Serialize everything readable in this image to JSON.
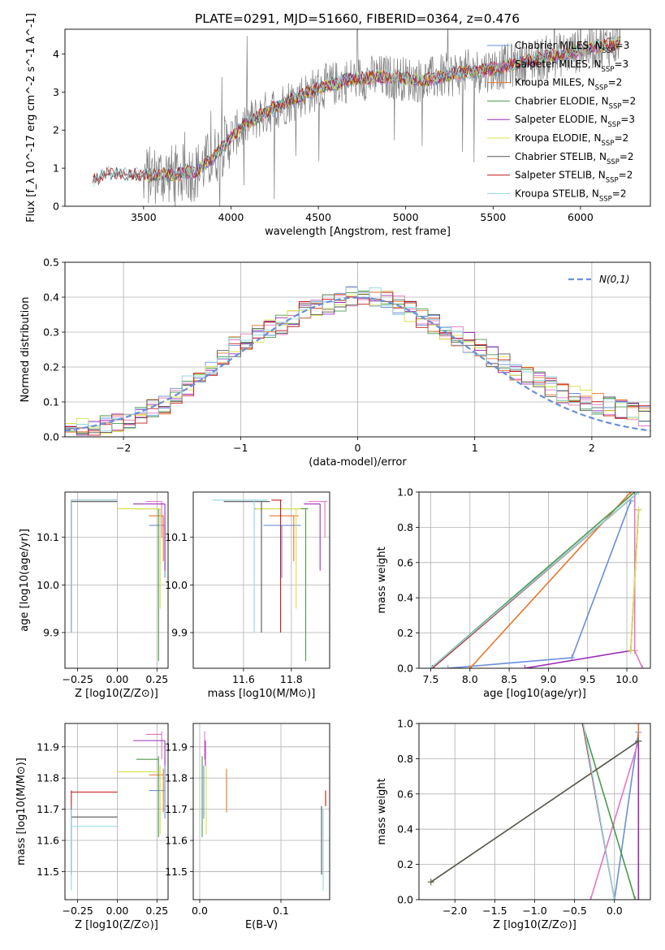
{
  "figure_title": "PLATE=0291, MJD=51660, FIBERID=0364, z=0.476",
  "colors": {
    "Chabrier MILES": "#6a8fd9",
    "Salpeter MILES": "#e377c2",
    "Kroupa MILES": "#e8772a",
    "Chabrier ELODIE": "#4b9a4b",
    "Salpeter ELODIE": "#9b2fb5",
    "Kroupa ELODIE": "#d8e04a",
    "Chabrier STELIB": "#555555",
    "Salpeter STELIB": "#c41818",
    "Kroupa STELIB": "#8fd6e0",
    "data": "#7f7f7f",
    "normal": "#6a8fd9"
  },
  "chart_data": [
    {
      "id": "spectrum",
      "type": "line",
      "title": "PLATE=0291, MJD=51660, FIBERID=0364, z=0.476",
      "xlabel": "wavelength [Angstrom, rest frame]",
      "ylabel": "Flux [f_λ 10^-17 erg cm^-2 s^-1 A^-1]",
      "xlim": [
        3050,
        6400
      ],
      "ylim": [
        0,
        4.65
      ],
      "xticks": [
        3500,
        4000,
        4500,
        5000,
        5500,
        6000
      ],
      "yticks": [
        0,
        1,
        2,
        3,
        4
      ],
      "legend_position": "right",
      "legend": [
        {
          "name": "Chabrier MILES",
          "text": "Chabrier MILES, N",
          "nssp": "=3"
        },
        {
          "name": "Salpeter MILES",
          "text": "Salpeter MILES, N",
          "nssp": "=3"
        },
        {
          "name": "Kroupa MILES",
          "text": "Kroupa MILES, N",
          "nssp": "=2"
        },
        {
          "name": "Chabrier ELODIE",
          "text": "Chabrier ELODIE, N",
          "nssp": "=2"
        },
        {
          "name": "Salpeter ELODIE",
          "text": "Salpeter ELODIE, N",
          "nssp": "=3"
        },
        {
          "name": "Kroupa ELODIE",
          "text": "Kroupa ELODIE, N",
          "nssp": "=2"
        },
        {
          "name": "Chabrier STELIB",
          "text": "Chabrier STELIB, N",
          "nssp": "=2"
        },
        {
          "name": "Salpeter STELIB",
          "text": "Salpeter STELIB, N",
          "nssp": "=2"
        },
        {
          "name": "Kroupa STELIB",
          "text": "Kroupa STELIB, N",
          "nssp": "=2"
        }
      ],
      "nssp_sub": "SSP",
      "continuum": {
        "x": [
          3210,
          3300,
          3500,
          3700,
          3800,
          3900,
          4000,
          4100,
          4300,
          4500,
          4700,
          4900,
          5100,
          5300,
          5500,
          5700,
          5900,
          6100,
          6230
        ],
        "y": [
          0.65,
          0.85,
          0.8,
          0.85,
          0.9,
          1.3,
          1.8,
          2.2,
          2.7,
          3.1,
          3.35,
          3.4,
          3.3,
          3.5,
          3.6,
          3.8,
          4.0,
          4.2,
          4.3
        ]
      }
    },
    {
      "id": "residuals",
      "type": "line",
      "xlabel": "(data-model)/error",
      "ylabel": "Normed distribution",
      "xlim": [
        -2.5,
        2.5
      ],
      "ylim": [
        0,
        0.5
      ],
      "xticks": [
        -2,
        -1,
        0,
        1,
        2
      ],
      "yticks": [
        0.0,
        0.1,
        0.2,
        0.3,
        0.4,
        0.5
      ],
      "legend": [
        {
          "name": "normal",
          "text": "N(0,1)"
        }
      ],
      "hist_envelope_x": [
        -2.45,
        -2.2,
        -2.0,
        -1.8,
        -1.6,
        -1.4,
        -1.2,
        -1.0,
        -0.8,
        -0.6,
        -0.4,
        -0.2,
        0.0,
        0.2,
        0.4,
        0.6,
        0.8,
        1.0,
        1.2,
        1.4,
        1.6,
        1.8,
        2.0,
        2.2,
        2.45
      ],
      "hist_envelope_y": [
        0.02,
        0.03,
        0.04,
        0.07,
        0.1,
        0.16,
        0.22,
        0.27,
        0.3,
        0.33,
        0.37,
        0.38,
        0.41,
        0.4,
        0.37,
        0.33,
        0.3,
        0.26,
        0.22,
        0.18,
        0.15,
        0.12,
        0.1,
        0.08,
        0.06
      ]
    },
    {
      "id": "age_vs_z",
      "type": "scatter",
      "xlabel": "Z [log10(Z/Z⊙)]",
      "ylabel": "age [log10(age/yr)]",
      "xlim": [
        -0.33,
        0.32
      ],
      "ylim": [
        9.825,
        10.195
      ],
      "xticks": [
        -0.25,
        0.0,
        0.25
      ],
      "yticks": [
        9.9,
        10.0,
        10.1
      ],
      "xticklabels": [
        "−0.25",
        "0.00",
        "0.25"
      ],
      "yticklabels": [
        "9.9",
        "10.0",
        "10.1"
      ]
    },
    {
      "id": "age_vs_mass",
      "type": "scatter",
      "xlabel": "mass [log10(M/M⊙)]",
      "xlim": [
        11.39,
        11.96
      ],
      "ylim": [
        9.825,
        10.195
      ],
      "xticks": [
        11.6,
        11.8
      ],
      "yticks": [
        9.9,
        10.0,
        10.1
      ],
      "xticklabels": [
        "11.6",
        "11.8"
      ],
      "yticklabels": [
        "9.9",
        "10.0",
        "10.1"
      ]
    },
    {
      "id": "mass_weight_vs_age",
      "type": "line",
      "xlabel": "age [log10(age/yr)]",
      "ylabel": "mass weight",
      "xlim": [
        7.35,
        10.3
      ],
      "ylim": [
        0,
        1
      ],
      "xticks": [
        7.5,
        8.0,
        8.5,
        9.0,
        9.5,
        10.0
      ],
      "yticks": [
        0.0,
        0.2,
        0.4,
        0.6,
        0.8,
        1.0
      ],
      "xticklabels": [
        "7.5",
        "8.0",
        "8.5",
        "9.0",
        "9.5",
        "10.0"
      ],
      "yticklabels": [
        "0.0",
        "0.2",
        "0.4",
        "0.6",
        "0.8",
        "1.0"
      ]
    },
    {
      "id": "mass_vs_z",
      "type": "scatter",
      "xlabel": "Z [log10(Z/Z⊙)]",
      "ylabel": "mass [log10(M/M⊙)]",
      "xlim": [
        -0.33,
        0.32
      ],
      "ylim": [
        11.41,
        11.975
      ],
      "xticks": [
        -0.25,
        0.0,
        0.25
      ],
      "yticks": [
        11.5,
        11.6,
        11.7,
        11.8,
        11.9
      ],
      "xticklabels": [
        "−0.25",
        "0.00",
        "0.25"
      ],
      "yticklabels": [
        "11.5",
        "11.6",
        "11.7",
        "11.8",
        "11.9"
      ]
    },
    {
      "id": "mass_vs_ebv",
      "type": "scatter",
      "xlabel": "E(B-V)",
      "xlim": [
        -0.008,
        0.16
      ],
      "ylim": [
        11.41,
        11.975
      ],
      "xticks": [
        0.0,
        0.1
      ],
      "yticks": [
        11.5,
        11.6,
        11.7,
        11.8,
        11.9
      ],
      "xticklabels": [
        "0.0",
        "0.1"
      ],
      "yticklabels": [
        "11.5",
        "11.6",
        "11.7",
        "11.8",
        "11.9"
      ]
    },
    {
      "id": "mass_weight_vs_z",
      "type": "line",
      "xlabel": "Z [log10(Z/Z⊙)]",
      "ylabel": "mass weight",
      "xlim": [
        -2.45,
        0.45
      ],
      "ylim": [
        0,
        1
      ],
      "xticks": [
        -2.0,
        -1.5,
        -1.0,
        -0.5,
        0.0
      ],
      "yticks": [
        0.0,
        0.2,
        0.4,
        0.6,
        0.8,
        1.0
      ],
      "xticklabels": [
        "−2.0",
        "−1.5",
        "−1.0",
        "−0.5",
        "0.0"
      ],
      "yticklabels": [
        "0.0",
        "0.2",
        "0.4",
        "0.6",
        "0.8",
        "1.0"
      ]
    }
  ],
  "models": [
    {
      "name": "Chabrier MILES",
      "Z": 0.3,
      "age": 10.125,
      "mass": 11.76,
      "ebv": 0.005,
      "age_lo": 10.015,
      "z_lo": 0.2,
      "m_lo": 11.67,
      "m_hi": 11.84,
      "mw_age": [
        [
          7.72,
          0.0
        ],
        [
          9.3,
          0.06
        ],
        [
          10.05,
          0.95
        ]
      ],
      "mw_z": [
        [
          0.0,
          0.0
        ],
        [
          0.3,
          0.95
        ]
      ]
    },
    {
      "name": "Salpeter MILES",
      "Z": 0.28,
      "age": 10.175,
      "mass": 11.94,
      "ebv": 0.006,
      "age_lo": 10.1,
      "z_lo": 0.18,
      "m_lo": 11.86,
      "m_hi": 11.95,
      "mw_age": [
        [
          10.2,
          0.0
        ],
        [
          10.1,
          0.1
        ],
        [
          10.1,
          1.0
        ]
      ],
      "mw_z": [
        [
          -0.3,
          0.0
        ],
        [
          0.3,
          0.9
        ]
      ]
    },
    {
      "name": "Kroupa MILES",
      "Z": 0.29,
      "age": 10.145,
      "mass": 11.81,
      "ebv": 0.033,
      "age_lo": 10.05,
      "z_lo": 0.2,
      "m_lo": 11.69,
      "m_hi": 11.83,
      "mw_age": [
        [
          8.0,
          0.0
        ],
        [
          10.05,
          1.0
        ]
      ],
      "mw_z": [
        [
          0.3,
          0.0
        ],
        [
          0.3,
          1.0
        ]
      ]
    },
    {
      "name": "Chabrier ELODIE",
      "Z": 0.26,
      "age": 10.16,
      "mass": 11.86,
      "ebv": 0.003,
      "age_lo": 9.84,
      "z_lo": 0.12,
      "m_lo": 11.61,
      "m_hi": 11.87,
      "mw_age": [
        [
          7.5,
          0.0
        ],
        [
          10.1,
          1.0
        ]
      ],
      "mw_z": [
        [
          -0.4,
          1.0
        ],
        [
          0.26,
          0.0
        ]
      ]
    },
    {
      "name": "Salpeter ELODIE",
      "Z": 0.3,
      "age": 10.17,
      "mass": 11.92,
      "ebv": 0.007,
      "age_lo": 10.03,
      "z_lo": 0.1,
      "m_lo": 11.84,
      "m_hi": 11.92,
      "mw_age": [
        [
          8.7,
          0.0
        ],
        [
          10.05,
          0.1
        ],
        [
          10.15,
          0.9
        ]
      ],
      "mw_z": [
        [
          0.3,
          0.0
        ],
        [
          0.3,
          0.9
        ]
      ]
    },
    {
      "name": "Kroupa ELODIE",
      "Z": 0.27,
      "age": 10.16,
      "mass": 11.82,
      "ebv": 0.008,
      "age_lo": 9.95,
      "z_lo": 0.0,
      "m_lo": 11.62,
      "m_hi": 11.84,
      "mw_age": [
        [
          10.05,
          0.1
        ],
        [
          10.15,
          0.9
        ]
      ],
      "mw_z": [
        [
          -2.3,
          0.1
        ],
        [
          0.3,
          0.9
        ]
      ]
    },
    {
      "name": "Chabrier STELIB",
      "Z": -0.29,
      "age": 10.175,
      "mass": 11.675,
      "ebv": 0.15,
      "age_lo": 9.9,
      "z_lo": -0.29,
      "m_lo": 11.49,
      "m_hi": 11.71,
      "mw_age": [
        [
          7.5,
          0.0
        ],
        [
          10.15,
          1.0
        ]
      ],
      "mw_z": [
        [
          -2.3,
          0.1
        ],
        [
          0.3,
          0.9
        ]
      ]
    },
    {
      "name": "Salpeter STELIB",
      "Z": -0.29,
      "age": 10.178,
      "mass": 11.755,
      "ebv": 0.155,
      "age_lo": 9.9,
      "z_lo": -0.29,
      "m_lo": 11.71,
      "m_hi": 11.76,
      "mw_age": [
        [
          7.52,
          0.0
        ],
        [
          10.15,
          1.0
        ]
      ],
      "mw_z": [
        [
          -0.4,
          1.0
        ],
        [
          0.0,
          0.0
        ]
      ]
    },
    {
      "name": "Kroupa STELIB",
      "Z": -0.29,
      "age": 10.178,
      "mass": 11.645,
      "ebv": 0.152,
      "age_lo": 9.9,
      "z_lo": -0.29,
      "m_lo": 11.44,
      "m_hi": 11.7,
      "mw_age": [
        [
          7.5,
          0.0
        ],
        [
          10.15,
          1.0
        ]
      ],
      "mw_z": [
        [
          -0.39,
          1.0
        ],
        [
          0.0,
          0.0
        ]
      ]
    }
  ]
}
